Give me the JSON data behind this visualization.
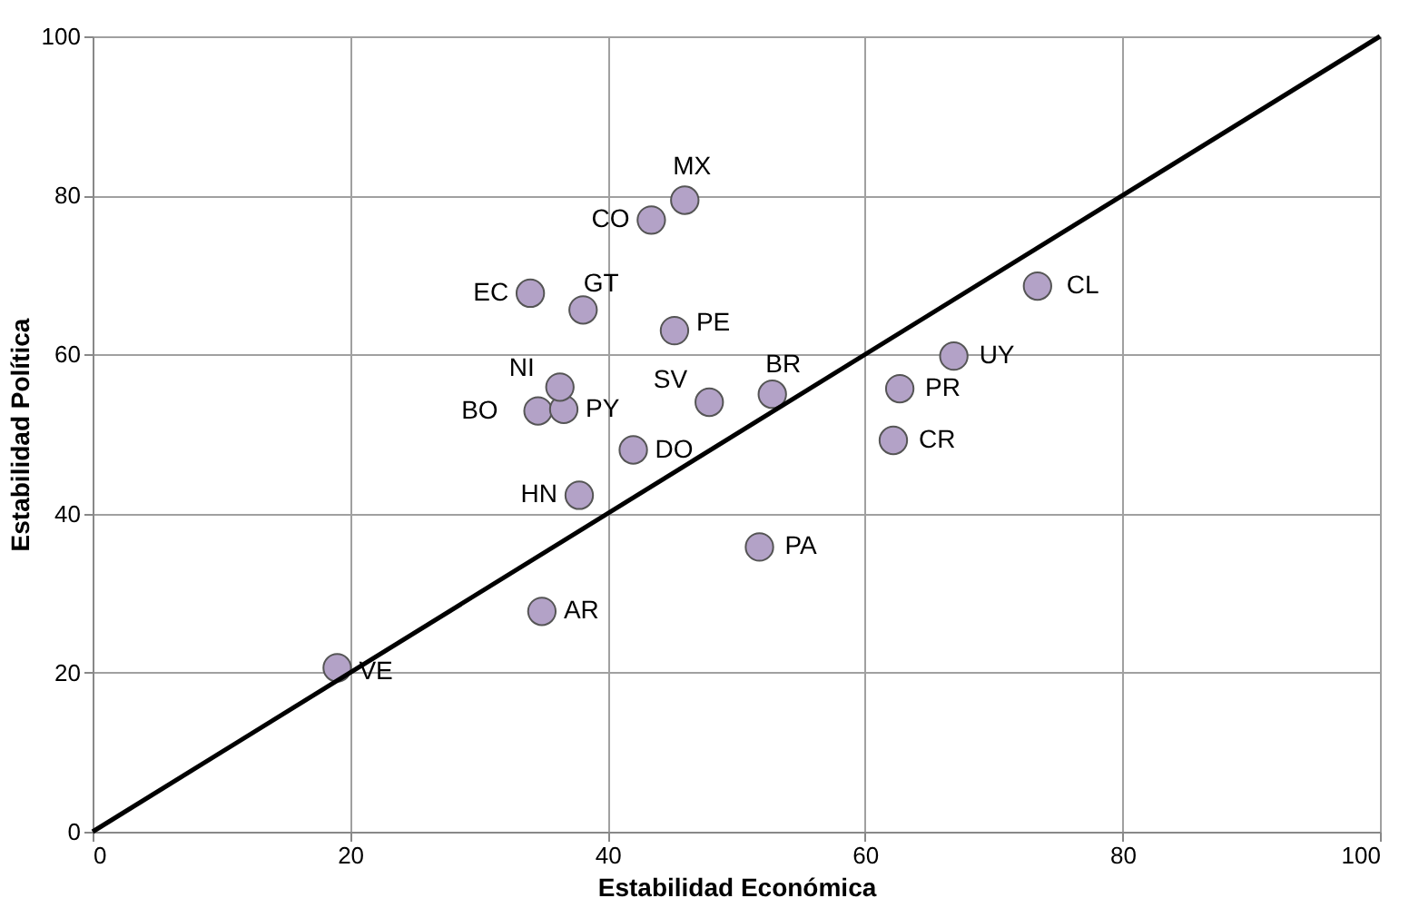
{
  "chart_data": {
    "type": "scatter",
    "xlabel": "Estabilidad Económica",
    "ylabel": "Estabilidad Política",
    "xlim": [
      0,
      100
    ],
    "ylim": [
      0,
      100
    ],
    "xticks": [
      0,
      20,
      40,
      60,
      80,
      100
    ],
    "yticks": [
      0,
      20,
      40,
      60,
      80,
      100
    ],
    "grid": true,
    "legend": false,
    "series": [
      {
        "type": "scatter",
        "marker": "circle",
        "color": "#b3a2c7",
        "x": [
          19,
          34.9,
          37.8,
          34.6,
          36.6,
          36.3,
          42.0,
          47.9,
          52.8,
          51.8,
          62.2,
          62.7,
          66.9,
          73.4,
          45.2,
          38.1,
          34.0,
          43.4,
          46.0
        ],
        "values": [
          20.6,
          27.7,
          42.3,
          52.9,
          53.1,
          55.9,
          48.0,
          54.0,
          55.0,
          35.8,
          49.2,
          55.7,
          59.8,
          68.6,
          63.0,
          65.6,
          67.7,
          76.9,
          79.4
        ]
      },
      {
        "type": "line",
        "marker": "none",
        "line_style": "solid",
        "color": "#000000",
        "x": [
          0,
          100
        ],
        "values": [
          0,
          100
        ]
      }
    ],
    "annotations": [
      {
        "text": "VE",
        "x": 19,
        "y": 20.6
      },
      {
        "text": "AR",
        "x": 34.9,
        "y": 27.7
      },
      {
        "text": "HN",
        "x": 37.8,
        "y": 42.3
      },
      {
        "text": "BO",
        "x": 34.6,
        "y": 52.9
      },
      {
        "text": "PY",
        "x": 36.6,
        "y": 53.1
      },
      {
        "text": "NI",
        "x": 36.3,
        "y": 55.9
      },
      {
        "text": "DO",
        "x": 42.0,
        "y": 48.0
      },
      {
        "text": "SV",
        "x": 47.9,
        "y": 54.0
      },
      {
        "text": "BR",
        "x": 52.8,
        "y": 55.0
      },
      {
        "text": "PA",
        "x": 51.8,
        "y": 35.8
      },
      {
        "text": "CR",
        "x": 62.2,
        "y": 49.2
      },
      {
        "text": "PR",
        "x": 62.7,
        "y": 55.7
      },
      {
        "text": "UY",
        "x": 66.9,
        "y": 59.8
      },
      {
        "text": "CL",
        "x": 73.4,
        "y": 68.6
      },
      {
        "text": "PE",
        "x": 45.2,
        "y": 63.0
      },
      {
        "text": "GT",
        "x": 38.1,
        "y": 65.6
      },
      {
        "text": "EC",
        "x": 34.0,
        "y": 67.7
      },
      {
        "text": "CO",
        "x": 43.4,
        "y": 76.9
      },
      {
        "text": "MX",
        "x": 46.0,
        "y": 79.4
      }
    ]
  }
}
